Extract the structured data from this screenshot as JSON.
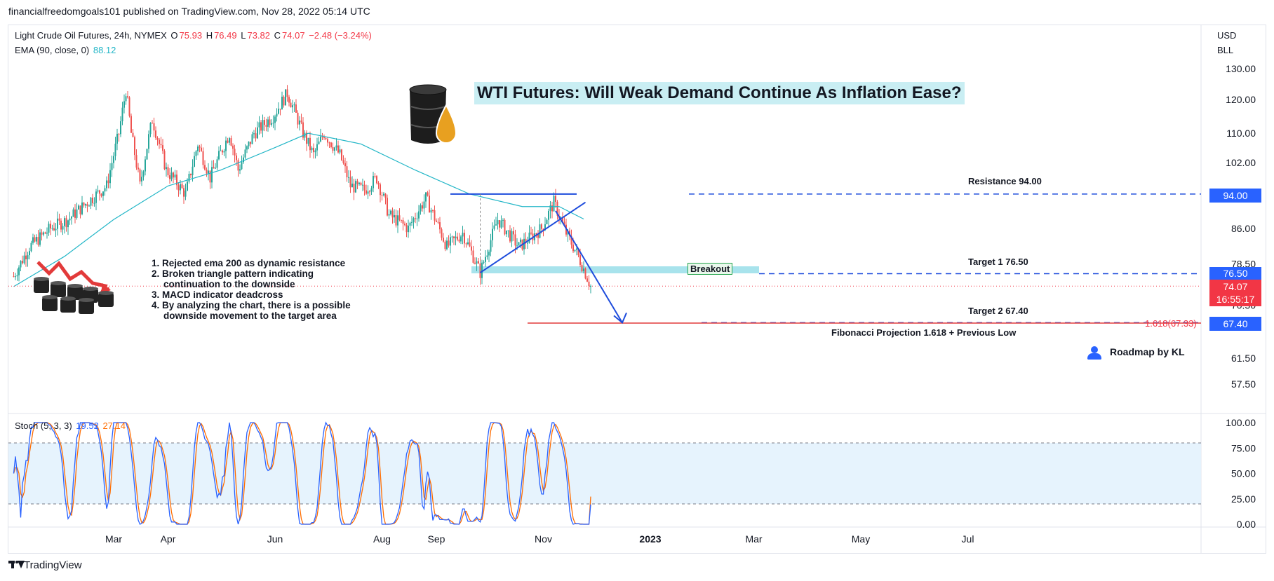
{
  "header": {
    "published": "financialfreedomgoals101 published on TradingView.com, Nov 28, 2022 05:14 UTC"
  },
  "legend": {
    "symbol": "Light Crude Oil Futures, 24h, NYMEX",
    "o_label": "O",
    "o": "75.93",
    "h_label": "H",
    "h": "76.49",
    "l_label": "L",
    "l": "73.82",
    "c_label": "C",
    "c": "74.07",
    "change": "−2.48 (−3.24%)",
    "ema_label": "EMA (90, close, 0)",
    "ema_value": "88.12"
  },
  "stoch_legend": {
    "label": "Stoch (5, 3, 3)",
    "k": "19.52",
    "d": "27.14"
  },
  "axis_units": {
    "currency": "USD",
    "unit": "BLL"
  },
  "title_box": "WTI Futures: Will Weak Demand Continue As Inflation Ease?",
  "annotations": {
    "resistance": "Resistance 94.00",
    "target1": "Target 1 76.50",
    "target2": "Target 2 67.40",
    "fib": "Fibonacci Projection 1.618 + Previous Low",
    "fib_level": "1.618(67.33)",
    "breakout": "Breakout",
    "roadmap": "Roadmap by KL"
  },
  "notes": [
    "1. Rejected ema 200 as dynamic resistance",
    "2. Broken triangle pattern indicating",
    "    continuation to the downside",
    "3. MACD indicator deadcross",
    "4. By analyzing the chart, there is a possible",
    "    downside movement to the target area"
  ],
  "price_tags": {
    "resistance": "94.00",
    "target1": "76.50",
    "last": "74.07",
    "countdown": "16:55:17",
    "target2": "67.40"
  },
  "footer": {
    "brand": "TradingView"
  },
  "colors": {
    "up": "#26a69a",
    "down": "#ef5350",
    "ema": "#22b6c7",
    "stoch_k": "#2962ff",
    "stoch_d": "#ff6d00",
    "blue": "#1e4cdc"
  },
  "chart_data": [
    {
      "type": "candlestick",
      "title": "Light Crude Oil Futures, 24h, NYMEX",
      "y_ticks": [
        "130.00",
        "120.00",
        "110.00",
        "102.00",
        "94.00",
        "86.00",
        "78.50",
        "70.50",
        "61.50",
        "57.50"
      ],
      "x_ticks": [
        "Mar",
        "Apr",
        "Jun",
        "Aug",
        "Sep",
        "Nov",
        "2023",
        "Mar",
        "May",
        "Jul"
      ],
      "ylim": [
        54,
        134
      ],
      "scale": "log",
      "close_path": [
        [
          "2022-01-03",
          76
        ],
        [
          "2022-01-12",
          82
        ],
        [
          "2022-01-24",
          86
        ],
        [
          "2022-02-03",
          88
        ],
        [
          "2022-02-14",
          92
        ],
        [
          "2022-02-25",
          96
        ],
        [
          "2022-03-04",
          110
        ],
        [
          "2022-03-08",
          123
        ],
        [
          "2022-03-11",
          110
        ],
        [
          "2022-03-16",
          96
        ],
        [
          "2022-03-23",
          114
        ],
        [
          "2022-03-31",
          100
        ],
        [
          "2022-04-11",
          94
        ],
        [
          "2022-04-18",
          107
        ],
        [
          "2022-04-25",
          98
        ],
        [
          "2022-05-06",
          110
        ],
        [
          "2022-05-11",
          100
        ],
        [
          "2022-05-20",
          110
        ],
        [
          "2022-05-31",
          115
        ],
        [
          "2022-06-08",
          122
        ],
        [
          "2022-06-17",
          110
        ],
        [
          "2022-06-23",
          104
        ],
        [
          "2022-06-29",
          110
        ],
        [
          "2022-07-08",
          104
        ],
        [
          "2022-07-14",
          96
        ],
        [
          "2022-07-22",
          95
        ],
        [
          "2022-07-29",
          98
        ],
        [
          "2022-08-05",
          89
        ],
        [
          "2022-08-16",
          86
        ],
        [
          "2022-08-26",
          93
        ],
        [
          "2022-09-07",
          82
        ],
        [
          "2022-09-16",
          85
        ],
        [
          "2022-09-26",
          76.7
        ],
        [
          "2022-10-06",
          88
        ],
        [
          "2022-10-18",
          82
        ],
        [
          "2022-10-31",
          86
        ],
        [
          "2022-11-07",
          92
        ],
        [
          "2022-11-14",
          85
        ],
        [
          "2022-11-21",
          80
        ],
        [
          "2022-11-28",
          74.07
        ]
      ],
      "ema_path": [
        [
          "2022-01-03",
          74
        ],
        [
          "2022-02-01",
          80
        ],
        [
          "2022-03-01",
          88
        ],
        [
          "2022-04-01",
          96
        ],
        [
          "2022-05-01",
          100
        ],
        [
          "2022-06-01",
          106
        ],
        [
          "2022-06-20",
          110
        ],
        [
          "2022-07-20",
          107
        ],
        [
          "2022-08-20",
          100
        ],
        [
          "2022-09-20",
          94
        ],
        [
          "2022-10-20",
          91
        ],
        [
          "2022-11-10",
          91
        ],
        [
          "2022-11-24",
          88.12
        ]
      ],
      "levels": {
        "resistance": 94.0,
        "target1": 76.5,
        "target2": 67.4,
        "last": 74.07,
        "fib_1_618": 67.33
      }
    },
    {
      "type": "line",
      "title": "Stoch (5, 3, 3)",
      "y_ticks": [
        "100.00",
        "75.00",
        "50.00",
        "25.00",
        "0.00"
      ],
      "ylim": [
        0,
        100
      ],
      "bands": [
        20,
        80
      ],
      "series": [
        {
          "name": "%K",
          "last": 19.52
        },
        {
          "name": "%D",
          "last": 27.14
        }
      ]
    }
  ]
}
